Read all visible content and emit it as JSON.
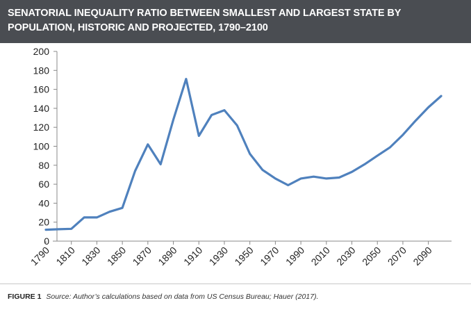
{
  "header": {
    "title_line1": "SENATORIAL INEQUALITY RATIO BETWEEN SMALLEST AND LARGEST STATE BY",
    "title_line2": "POPULATION, HISTORIC AND PROJECTED, 1790–2100",
    "background_color": "#4a4d52"
  },
  "caption": {
    "label": "FIGURE 1",
    "source": "Source: Author’s calculations based on data from US Census Bureau; Hauer (2017)."
  },
  "chart_data": {
    "type": "line",
    "title": "SENATORIAL INEQUALITY RATIO BETWEEN SMALLEST AND LARGEST STATE BY POPULATION, HISTORIC AND PROJECTED, 1790–2100",
    "xlabel": "",
    "ylabel": "",
    "xlim": [
      1790,
      2100
    ],
    "ylim": [
      0,
      200
    ],
    "x_ticks": [
      "1790",
      "1810",
      "1830",
      "1850",
      "1870",
      "1890",
      "1910",
      "1930",
      "1950",
      "1970",
      "1990",
      "2010",
      "2030",
      "2050",
      "2070",
      "2090"
    ],
    "y_ticks": [
      "0",
      "20",
      "40",
      "60",
      "80",
      "100",
      "120",
      "140",
      "160",
      "180",
      "200"
    ],
    "grid": false,
    "legend": "none",
    "line_color": "#4f81bd",
    "series": [
      {
        "x": [
          1790,
          1800,
          1810,
          1820,
          1830,
          1840,
          1850,
          1860,
          1870,
          1880,
          1890,
          1900,
          1910,
          1920,
          1930,
          1940,
          1950,
          1960,
          1970,
          1980,
          1990,
          2000,
          2010,
          2020,
          2030,
          2040,
          2050,
          2060,
          2070,
          2080,
          2090,
          2100
        ],
        "values": [
          12,
          12.5,
          13,
          25,
          25,
          31,
          35,
          74,
          102,
          81,
          128,
          171,
          111,
          133,
          138,
          122,
          92,
          75,
          66,
          59,
          66,
          68,
          66,
          67,
          73,
          81,
          90,
          99,
          112,
          127,
          141,
          153
        ]
      }
    ]
  }
}
